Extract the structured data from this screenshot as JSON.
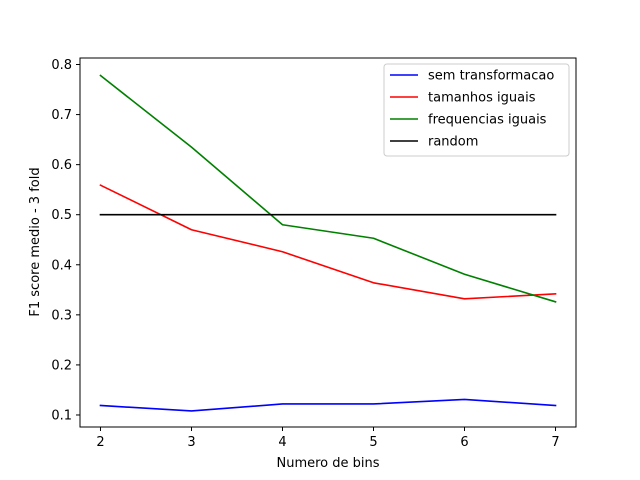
{
  "chart_data": {
    "type": "line",
    "xlabel": "Numero de bins",
    "ylabel": "F1 score medio - 3 fold",
    "x": [
      2,
      3,
      4,
      5,
      6,
      7
    ],
    "xlim": [
      1.775,
      7.225
    ],
    "ylim": [
      0.076,
      0.813
    ],
    "xticks": [
      "2",
      "3",
      "4",
      "5",
      "6",
      "7"
    ],
    "yticks": [
      "0.1",
      "0.2",
      "0.3",
      "0.4",
      "0.5",
      "0.6",
      "0.7",
      "0.8"
    ],
    "grid": false,
    "legend_position": "top-right",
    "series": [
      {
        "name": "sem transformacao",
        "color": "#0000ff",
        "values": [
          0.119,
          0.108,
          0.122,
          0.122,
          0.131,
          0.119
        ]
      },
      {
        "name": "tamanhos iguais",
        "color": "#ff0000",
        "values": [
          0.559,
          0.47,
          0.426,
          0.364,
          0.332,
          0.342
        ]
      },
      {
        "name": "frequencias iguais",
        "color": "#008000",
        "values": [
          0.778,
          0.635,
          0.48,
          0.453,
          0.381,
          0.326
        ]
      },
      {
        "name": "random",
        "color": "#000000",
        "values": [
          0.5,
          0.5,
          0.5,
          0.5,
          0.5,
          0.5
        ]
      }
    ]
  }
}
